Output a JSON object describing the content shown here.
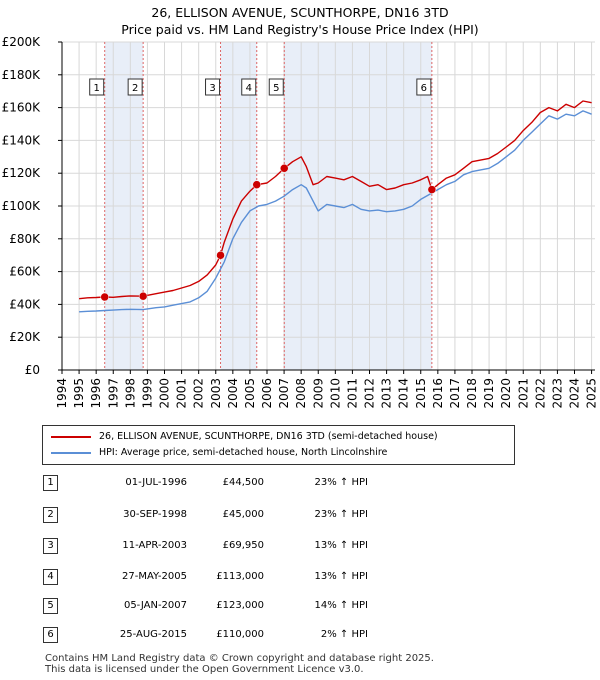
{
  "title_line1": "26, ELLISON AVENUE, SCUNTHORPE, DN16 3TD",
  "title_line2": "Price paid vs. HM Land Registry's House Price Index (HPI)",
  "chart_data": {
    "type": "line",
    "title": "26, ELLISON AVENUE, SCUNTHORPE, DN16 3TD — Price paid vs. HM Land Registry's House Price Index (HPI)",
    "xlim": [
      1994,
      2025.2
    ],
    "ylim": [
      0,
      200000
    ],
    "y_ticks": [
      {
        "value": 0,
        "label": "£0"
      },
      {
        "value": 20000,
        "label": "£20K"
      },
      {
        "value": 40000,
        "label": "£40K"
      },
      {
        "value": 60000,
        "label": "£60K"
      },
      {
        "value": 80000,
        "label": "£80K"
      },
      {
        "value": 100000,
        "label": "£100K"
      },
      {
        "value": 120000,
        "label": "£120K"
      },
      {
        "value": 140000,
        "label": "£140K"
      },
      {
        "value": 160000,
        "label": "£160K"
      },
      {
        "value": 180000,
        "label": "£180K"
      },
      {
        "value": 200000,
        "label": "£200K"
      }
    ],
    "x_ticks": [
      "1994",
      "1995",
      "1996",
      "1997",
      "1998",
      "1999",
      "2000",
      "2001",
      "2002",
      "2003",
      "2004",
      "2005",
      "2006",
      "2007",
      "2008",
      "2009",
      "2010",
      "2011",
      "2012",
      "2013",
      "2014",
      "2015",
      "2016",
      "2017",
      "2018",
      "2019",
      "2020",
      "2021",
      "2022",
      "2023",
      "2024",
      "2025"
    ],
    "shaded_spans": [
      [
        1996.5,
        1998.75
      ],
      [
        2003.28,
        2005.4
      ],
      [
        2007.01,
        2015.65
      ]
    ],
    "series": [
      {
        "name": "26, ELLISON AVENUE, SCUNTHORPE, DN16 3TD (semi-detached house)",
        "color": "#cc0000",
        "x": [
          1995.0,
          1995.5,
          1996.0,
          1996.5,
          1997.0,
          1997.5,
          1998.0,
          1998.75,
          1999.5,
          2000.0,
          2000.5,
          2001.0,
          2001.5,
          2002.0,
          2002.5,
          2003.0,
          2003.28,
          2003.5,
          2004.0,
          2004.5,
          2005.0,
          2005.4,
          2006.0,
          2006.5,
          2007.01,
          2007.5,
          2008.0,
          2008.3,
          2008.7,
          2009.0,
          2009.5,
          2010.0,
          2010.5,
          2011.0,
          2011.5,
          2012.0,
          2012.5,
          2013.0,
          2013.5,
          2014.0,
          2014.5,
          2015.0,
          2015.4,
          2015.65,
          2016.0,
          2016.5,
          2017.0,
          2017.5,
          2018.0,
          2018.5,
          2019.0,
          2019.5,
          2020.0,
          2020.5,
          2021.0,
          2021.5,
          2022.0,
          2022.5,
          2023.0,
          2023.5,
          2024.0,
          2024.5,
          2025.0
        ],
        "y": [
          43500,
          44000,
          44200,
          44500,
          44300,
          44800,
          45200,
          45000,
          46500,
          47500,
          48500,
          50000,
          51500,
          54000,
          58000,
          64000,
          69950,
          78000,
          92000,
          103000,
          109000,
          113000,
          114000,
          118000,
          123000,
          127000,
          130000,
          124000,
          113000,
          114000,
          118000,
          117000,
          116000,
          118000,
          115000,
          112000,
          113000,
          110000,
          111000,
          113000,
          114000,
          116000,
          118000,
          110000,
          113000,
          117000,
          119000,
          123000,
          127000,
          128000,
          129000,
          132000,
          136000,
          140000,
          146000,
          151000,
          157000,
          160000,
          158000,
          162000,
          160000,
          164000,
          163000
        ]
      },
      {
        "name": "HPI: Average price, semi-detached house, North Lincolnshire",
        "color": "#5b8fd6",
        "x": [
          1995.0,
          1995.5,
          1996.0,
          1996.5,
          1997.0,
          1997.5,
          1998.0,
          1998.75,
          1999.5,
          2000.0,
          2000.5,
          2001.0,
          2001.5,
          2002.0,
          2002.5,
          2003.0,
          2003.5,
          2004.0,
          2004.5,
          2005.0,
          2005.5,
          2006.0,
          2006.5,
          2007.0,
          2007.5,
          2008.0,
          2008.3,
          2008.7,
          2009.0,
          2009.5,
          2010.0,
          2010.5,
          2011.0,
          2011.5,
          2012.0,
          2012.5,
          2013.0,
          2013.5,
          2014.0,
          2014.5,
          2015.0,
          2015.5,
          2016.0,
          2016.5,
          2017.0,
          2017.5,
          2018.0,
          2018.5,
          2019.0,
          2019.5,
          2020.0,
          2020.5,
          2021.0,
          2021.5,
          2022.0,
          2022.5,
          2023.0,
          2023.5,
          2024.0,
          2024.5,
          2025.0
        ],
        "y": [
          35500,
          35800,
          36000,
          36300,
          36500,
          36800,
          37000,
          36800,
          38000,
          38500,
          39500,
          40500,
          41500,
          44000,
          48000,
          56000,
          66000,
          80000,
          90000,
          97000,
          100000,
          101000,
          103000,
          106000,
          110000,
          113000,
          111000,
          103000,
          97000,
          101000,
          100000,
          99000,
          101000,
          98000,
          97000,
          97500,
          96500,
          97000,
          98000,
          100000,
          104000,
          107000,
          110000,
          113000,
          115000,
          119000,
          121000,
          122000,
          123000,
          126000,
          130000,
          134000,
          140000,
          145000,
          150000,
          155000,
          153000,
          156000,
          155000,
          158000,
          156000
        ]
      }
    ],
    "events": [
      {
        "label": "1",
        "x": 1996.5
      },
      {
        "label": "2",
        "x": 1998.75
      },
      {
        "label": "3",
        "x": 2003.28
      },
      {
        "label": "4",
        "x": 2005.4
      },
      {
        "label": "5",
        "x": 2007.01
      },
      {
        "label": "6",
        "x": 2015.65
      }
    ],
    "sales": [
      {
        "label": "1",
        "x": 1996.5,
        "y": 44500
      },
      {
        "label": "2",
        "x": 1998.75,
        "y": 45000
      },
      {
        "label": "3",
        "x": 2003.28,
        "y": 69950
      },
      {
        "label": "4",
        "x": 2005.4,
        "y": 113000
      },
      {
        "label": "5",
        "x": 2007.01,
        "y": 123000
      },
      {
        "label": "6",
        "x": 2015.65,
        "y": 110000
      }
    ]
  },
  "legend": [
    {
      "label": "26, ELLISON AVENUE, SCUNTHORPE, DN16 3TD (semi-detached house)",
      "color": "#cc0000"
    },
    {
      "label": "HPI: Average price, semi-detached house, North Lincolnshire",
      "color": "#5b8fd6"
    }
  ],
  "transactions": [
    {
      "num": "1",
      "date": "01-JUL-1996",
      "price": "£44,500",
      "hpi": "23% ↑ HPI"
    },
    {
      "num": "2",
      "date": "30-SEP-1998",
      "price": "£45,000",
      "hpi": "23% ↑ HPI"
    },
    {
      "num": "3",
      "date": "11-APR-2003",
      "price": "£69,950",
      "hpi": "13% ↑ HPI"
    },
    {
      "num": "4",
      "date": "27-MAY-2005",
      "price": "£113,000",
      "hpi": "13% ↑ HPI"
    },
    {
      "num": "5",
      "date": "05-JAN-2007",
      "price": "£123,000",
      "hpi": "14% ↑ HPI"
    },
    {
      "num": "6",
      "date": "25-AUG-2015",
      "price": "£110,000",
      "hpi": "2% ↑ HPI"
    }
  ],
  "footer_line1": "Contains HM Land Registry data © Crown copyright and database right 2025.",
  "footer_line2": "This data is licensed under the Open Government Licence v3.0."
}
